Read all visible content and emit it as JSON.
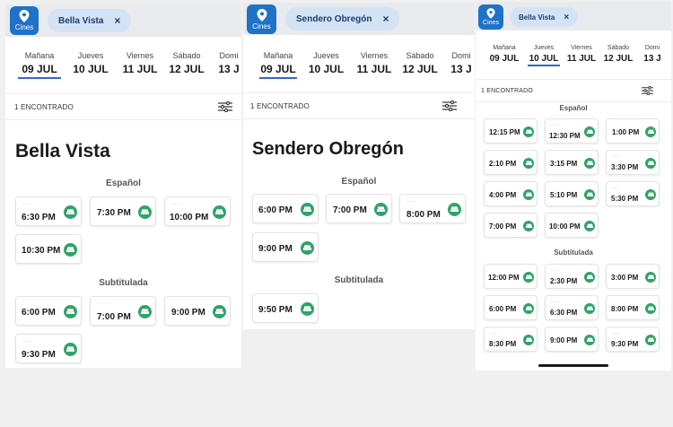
{
  "colors": {
    "accent": "#1f72c8",
    "chip_bg": "#d4e2f5",
    "seat_icon": "#31a368",
    "selected_underline": "#2b6cc4"
  },
  "panels": [
    {
      "location_button": {
        "label": "Cines",
        "icon": "map-pin-icon"
      },
      "chip": {
        "label": "Bella Vista",
        "close": "×"
      },
      "days": [
        {
          "name": "Mañana",
          "date": "09 JUL",
          "selected": true
        },
        {
          "name": "Jueves",
          "date": "10 JUL",
          "selected": false
        },
        {
          "name": "Viernes",
          "date": "11 JUL",
          "selected": false
        },
        {
          "name": "Sábado",
          "date": "12 JUL",
          "selected": false
        },
        {
          "name": "Domi",
          "date": "13 J",
          "selected": false
        }
      ],
      "found": "1 ENCONTRADO",
      "cinema_title": "Bella Vista",
      "sections": [
        {
          "title": "Español",
          "slots": [
            "6:30 PM",
            "7:30 PM",
            "10:00 PM",
            "10:30 PM"
          ]
        },
        {
          "title": "Subtitulada",
          "slots": [
            "6:00 PM",
            "7:00 PM",
            "9:00 PM",
            "9:30 PM"
          ]
        }
      ]
    },
    {
      "location_button": {
        "label": "Cines",
        "icon": "map-pin-icon"
      },
      "chip": {
        "label": "Sendero Obregón",
        "close": "×"
      },
      "days": [
        {
          "name": "Mañana",
          "date": "09 JUL",
          "selected": true
        },
        {
          "name": "Jueves",
          "date": "10 JUL",
          "selected": false
        },
        {
          "name": "Viernes",
          "date": "11 JUL",
          "selected": false
        },
        {
          "name": "Sábado",
          "date": "12 JUL",
          "selected": false
        },
        {
          "name": "Domi",
          "date": "13 J",
          "selected": false
        }
      ],
      "found": "1 ENCONTRADO",
      "cinema_title": "Sendero Obregón",
      "sections": [
        {
          "title": "Español",
          "slots": [
            "6:00 PM",
            "7:00 PM",
            "8:00 PM",
            "9:00 PM"
          ]
        },
        {
          "title": "Subtitulada",
          "slots": [
            "9:50 PM"
          ]
        }
      ]
    },
    {
      "location_button": {
        "label": "Cines",
        "icon": "map-pin-icon"
      },
      "chip": {
        "label": "Bella Vista",
        "close": "×"
      },
      "days": [
        {
          "name": "Mañana",
          "date": "09 JUL",
          "selected": false
        },
        {
          "name": "Jueves",
          "date": "10 JUL",
          "selected": true
        },
        {
          "name": "Viernes",
          "date": "11 JUL",
          "selected": false
        },
        {
          "name": "Sábado",
          "date": "12 JUL",
          "selected": false
        },
        {
          "name": "Domi",
          "date": "13 J",
          "selected": false
        }
      ],
      "found": "1 ENCONTRADO",
      "sections": [
        {
          "title": "Español",
          "slots": [
            "12:15 PM",
            "12:30 PM",
            "1:00 PM",
            "2:10 PM",
            "3:15 PM",
            "3:30 PM",
            "4:00 PM",
            "5:10 PM",
            "5:30 PM",
            "7:00 PM",
            "10:00 PM"
          ]
        },
        {
          "title": "Subtitulada",
          "slots": [
            "12:00 PM",
            "2:30 PM",
            "3:00 PM",
            "6:00 PM",
            "6:30 PM",
            "8:00 PM",
            "8:30 PM",
            "9:00 PM",
            "9:30 PM"
          ]
        }
      ]
    }
  ]
}
